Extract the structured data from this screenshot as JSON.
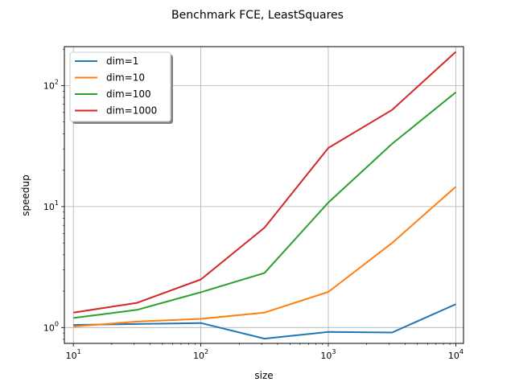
{
  "chart_data": {
    "type": "line",
    "title": "Benchmark FCE, LeastSquares",
    "xlabel": "size",
    "ylabel": "speedup",
    "xscale": "log",
    "yscale": "log",
    "xlim": [
      8.5,
      11500
    ],
    "ylim": [
      0.74,
      210
    ],
    "grid": true,
    "legend_position": "top-left",
    "x": [
      10,
      31.6,
      100,
      316,
      1000,
      3162,
      10000
    ],
    "x_ticks": [
      {
        "value": 10,
        "base": "10",
        "exp": "1"
      },
      {
        "value": 100,
        "base": "10",
        "exp": "2"
      },
      {
        "value": 1000,
        "base": "10",
        "exp": "3"
      },
      {
        "value": 10000,
        "base": "10",
        "exp": "4"
      }
    ],
    "y_ticks": [
      {
        "value": 1,
        "base": "10",
        "exp": "0"
      },
      {
        "value": 10,
        "base": "10",
        "exp": "1"
      },
      {
        "value": 100,
        "base": "10",
        "exp": "2"
      }
    ],
    "series": [
      {
        "name": "dim=1",
        "color": "#1f77b4",
        "values": [
          1.05,
          1.07,
          1.09,
          0.81,
          0.92,
          0.91,
          1.56
        ]
      },
      {
        "name": "dim=10",
        "color": "#ff7f0e",
        "values": [
          1.02,
          1.12,
          1.18,
          1.33,
          1.97,
          5.0,
          14.6
        ]
      },
      {
        "name": "dim=100",
        "color": "#2ca02c",
        "values": [
          1.2,
          1.4,
          1.96,
          2.83,
          10.8,
          33.0,
          88.0
        ]
      },
      {
        "name": "dim=1000",
        "color": "#d62728",
        "values": [
          1.33,
          1.6,
          2.5,
          6.7,
          30.5,
          63.0,
          190.0
        ]
      }
    ]
  }
}
